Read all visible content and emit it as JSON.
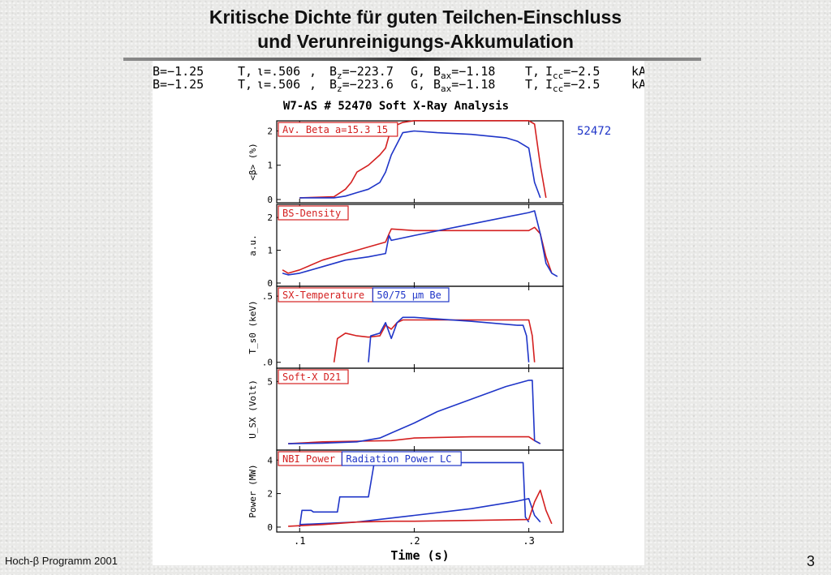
{
  "slide": {
    "title_line1": "Kritische Dichte für guten Teilchen-Einschluss",
    "title_line2": "und Verunreinigungs-Akkumulation",
    "footer": "Hoch-β Programm 2001",
    "page_number": "3"
  },
  "params": [
    {
      "B": "B=−1.25",
      "T1": "T,",
      "iota": "ι=.506",
      "bz_sep": ",",
      "Bz": "B",
      "Bz_sub": "z",
      "Bz_val": "=−223.7",
      "G": "G,",
      "Bax": "B",
      "Bax_sub": "ax",
      "Bax_val": "=−1.18",
      "T2": "T,",
      "Icc": "I",
      "Icc_sub": "cc",
      "Icc_val": "=−2.5",
      "kA": "kA"
    },
    {
      "B": "B=−1.25",
      "T1": "T,",
      "iota": "ι=.506",
      "bz_sep": ",",
      "Bz": "B",
      "Bz_sub": "z",
      "Bz_val": "=−223.6",
      "G": "G,",
      "Bax": "B",
      "Bax_sub": "ax",
      "Bax_val": "=−1.18",
      "T2": "T,",
      "Icc": "I",
      "Icc_sub": "cc",
      "Icc_val": "=−2.5",
      "kA": "kA"
    }
  ],
  "colors": {
    "red": "#d42020",
    "blue": "#1f35c8"
  },
  "chart_data": {
    "type": "line",
    "title": "W7-AS # 52470 Soft X-Ray Analysis",
    "second_shot_label": "52472",
    "xlabel": "Time (s)",
    "xlim": [
      0.08,
      0.33
    ],
    "xticks": [
      0.1,
      0.2,
      0.3
    ],
    "xtick_labels": [
      ".1",
      ".2",
      ".3"
    ],
    "panels": [
      {
        "label": "Av. Beta a=15.3 15",
        "label2": "",
        "ylabel": "<β> (%)",
        "ylim": [
          0,
          2.2
        ],
        "yticks": [
          0,
          1,
          2
        ],
        "ytick_labels": [
          "0",
          "1",
          "2"
        ],
        "series": [
          {
            "color": "red",
            "x": [
              0.1,
              0.13,
              0.14,
              0.145,
              0.15,
              0.16,
              0.17,
              0.175,
              0.18,
              0.19,
              0.2,
              0.25,
              0.3,
              0.305,
              0.31,
              0.315
            ],
            "y": [
              0.05,
              0.08,
              0.3,
              0.5,
              0.8,
              1.0,
              1.3,
              1.5,
              2.1,
              2.25,
              2.3,
              2.3,
              2.3,
              2.2,
              1.0,
              0.05
            ]
          },
          {
            "color": "blue",
            "x": [
              0.1,
              0.13,
              0.14,
              0.15,
              0.16,
              0.17,
              0.175,
              0.18,
              0.19,
              0.2,
              0.22,
              0.25,
              0.28,
              0.29,
              0.3,
              0.305,
              0.31
            ],
            "y": [
              0.05,
              0.05,
              0.1,
              0.2,
              0.3,
              0.5,
              0.8,
              1.3,
              1.95,
              2.0,
              1.95,
              1.9,
              1.8,
              1.7,
              1.5,
              0.5,
              0.05
            ]
          }
        ]
      },
      {
        "label": "BS-Density",
        "label2": "",
        "ylabel": "a.u.",
        "ylim": [
          0,
          2.3
        ],
        "yticks": [
          0,
          1,
          2
        ],
        "ytick_labels": [
          "0",
          "1",
          "2"
        ],
        "series": [
          {
            "color": "red",
            "x": [
              0.085,
              0.09,
              0.1,
              0.12,
              0.14,
              0.16,
              0.175,
              0.178,
              0.18,
              0.2,
              0.25,
              0.3,
              0.305,
              0.31,
              0.315,
              0.32
            ],
            "y": [
              0.4,
              0.3,
              0.4,
              0.7,
              0.9,
              1.1,
              1.25,
              1.5,
              1.65,
              1.6,
              1.6,
              1.6,
              1.7,
              1.5,
              0.8,
              0.3
            ]
          },
          {
            "color": "blue",
            "x": [
              0.085,
              0.09,
              0.1,
              0.12,
              0.14,
              0.16,
              0.175,
              0.178,
              0.18,
              0.2,
              0.25,
              0.3,
              0.305,
              0.31,
              0.315,
              0.32,
              0.325
            ],
            "y": [
              0.3,
              0.25,
              0.3,
              0.5,
              0.7,
              0.8,
              0.9,
              1.45,
              1.3,
              1.45,
              1.8,
              2.15,
              2.2,
              1.5,
              0.6,
              0.3,
              0.2
            ]
          }
        ]
      },
      {
        "label": "SX-Temperature",
        "label2": "50/75 μm Be",
        "ylabel": "T_s0 (keV)",
        "ylim": [
          -0.02,
          0.55
        ],
        "yticks": [
          0.0,
          0.5
        ],
        "ytick_labels": [
          ".0",
          ".5"
        ],
        "series": [
          {
            "color": "red",
            "x": [
              0.13,
              0.133,
              0.14,
              0.15,
              0.16,
              0.17,
              0.175,
              0.18,
              0.185,
              0.19,
              0.2,
              0.25,
              0.3,
              0.303,
              0.305
            ],
            "y": [
              0.0,
              0.18,
              0.22,
              0.2,
              0.19,
              0.2,
              0.28,
              0.25,
              0.3,
              0.32,
              0.32,
              0.32,
              0.32,
              0.2,
              0.0
            ]
          },
          {
            "color": "blue",
            "x": [
              0.16,
              0.162,
              0.17,
              0.175,
              0.18,
              0.185,
              0.19,
              0.2,
              0.25,
              0.29,
              0.295,
              0.298,
              0.3
            ],
            "y": [
              0.0,
              0.2,
              0.22,
              0.3,
              0.18,
              0.3,
              0.34,
              0.34,
              0.31,
              0.28,
              0.28,
              0.2,
              0.0
            ]
          }
        ]
      },
      {
        "label": "Soft-X D21",
        "label2": "",
        "ylabel": "U_SX (Volt)",
        "ylim": [
          -0.2,
          5.8
        ],
        "yticks": [
          5
        ],
        "ytick_labels": [
          "5"
        ],
        "series": [
          {
            "color": "red",
            "x": [
              0.09,
              0.12,
              0.15,
              0.18,
              0.2,
              0.25,
              0.3,
              0.305,
              0.31
            ],
            "y": [
              0.05,
              0.2,
              0.25,
              0.3,
              0.5,
              0.6,
              0.6,
              0.3,
              0.05
            ]
          },
          {
            "color": "blue",
            "x": [
              0.09,
              0.12,
              0.15,
              0.17,
              0.18,
              0.2,
              0.22,
              0.25,
              0.28,
              0.3,
              0.303,
              0.305,
              0.31
            ],
            "y": [
              0.05,
              0.1,
              0.2,
              0.5,
              0.9,
              1.7,
              2.6,
              3.6,
              4.6,
              5.1,
              5.1,
              0.3,
              0.05
            ]
          }
        ]
      },
      {
        "label": "NBI Power",
        "label2": "Radiation Power LC",
        "ylabel": "Power (MW)",
        "ylim": [
          -0.1,
          4.4
        ],
        "yticks": [
          0,
          2,
          4
        ],
        "ytick_labels": [
          "0",
          "2",
          "4"
        ],
        "series": [
          {
            "color": "blue",
            "x": [
              0.1,
              0.102,
              0.11,
              0.112,
              0.133,
              0.135,
              0.16,
              0.162,
              0.165,
              0.2,
              0.25,
              0.295,
              0.297,
              0.3
            ],
            "y": [
              0.0,
              1.0,
              1.0,
              0.9,
              0.9,
              1.8,
              1.8,
              2.6,
              3.8,
              3.85,
              3.85,
              3.85,
              0.6,
              0.3
            ]
          },
          {
            "color": "blue",
            "x": [
              0.1,
              0.15,
              0.2,
              0.25,
              0.29,
              0.3,
              0.305,
              0.31
            ],
            "y": [
              0.15,
              0.3,
              0.7,
              1.1,
              1.55,
              1.7,
              0.7,
              0.3
            ]
          },
          {
            "color": "red",
            "x": [
              0.09,
              0.12,
              0.15,
              0.18,
              0.2,
              0.25,
              0.3,
              0.305,
              0.31,
              0.315,
              0.32
            ],
            "y": [
              0.05,
              0.15,
              0.3,
              0.35,
              0.35,
              0.4,
              0.45,
              1.5,
              2.2,
              1.0,
              0.2
            ]
          }
        ]
      }
    ]
  }
}
